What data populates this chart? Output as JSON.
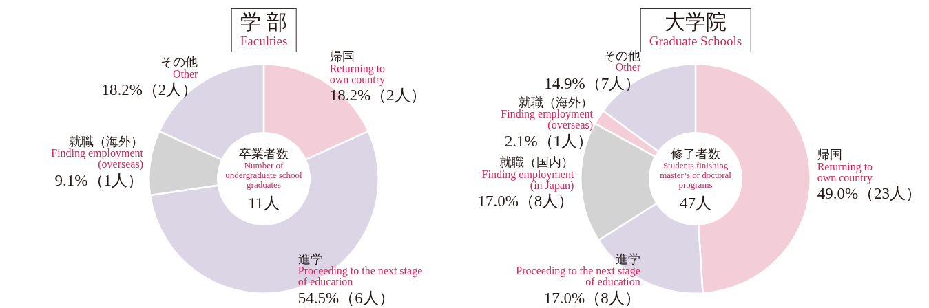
{
  "chart_data": [
    {
      "type": "donut",
      "title": "学 部",
      "subtitle": "Faculties",
      "categories": [
        "帰国\nReturning to\nown country",
        "進学\nProceeding to the next stage\nof education",
        "就職（海外）\nFinding employment\n(overseas)",
        "その他\nOther"
      ],
      "values": [
        18.2,
        54.5,
        9.1,
        18.2
      ],
      "value_labels": [
        "18.2%（2人）",
        "54.5%（6人）",
        "9.1%（1人）",
        "18.2%（2人）"
      ],
      "colors": [
        "#f3cdd8",
        "#dcd5e6",
        "#d4d3d3",
        "#dcd5e6"
      ],
      "annotations": [
        "卒業者数",
        "Number of\nundergraduate school\ngraduates",
        "11人"
      ]
    },
    {
      "type": "donut",
      "title": "大学院",
      "subtitle": "Graduate Schools",
      "categories": [
        "帰国\nReturning to\nown country",
        "進学\nProceeding to the next stage\nof education",
        "就職（国内）\nFinding employment\n(in Japan)",
        "就職（海外）\nFinding employment\n(overseas)",
        "その他\nOther"
      ],
      "values": [
        49.0,
        17.0,
        17.0,
        2.1,
        14.9
      ],
      "value_labels": [
        "49.0%（23人）",
        "17.0%（8人）",
        "17.0%（8人）",
        "2.1%（1人）",
        "14.9%（7人）"
      ],
      "colors": [
        "#f3cdd8",
        "#dcd5e6",
        "#d4d3d3",
        "#f3cdd8",
        "#dcd5e6"
      ],
      "annotations": [
        "修了者数",
        "Students finishing\nmaster’s or doctoral\nprograms",
        "47人"
      ]
    }
  ]
}
